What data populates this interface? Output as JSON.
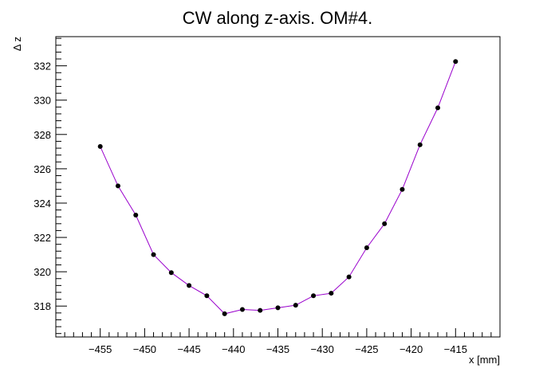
{
  "chart_data": {
    "type": "line",
    "title": "CW along z-axis. OM#4.",
    "xlabel": "x [mm]",
    "ylabel": "Δ z",
    "xlim": [
      -460,
      -410
    ],
    "ylim": [
      316.2,
      333.7
    ],
    "x_ticks": [
      -455,
      -450,
      -445,
      -440,
      -435,
      -430,
      -425,
      -420,
      -415
    ],
    "y_ticks": [
      318,
      320,
      322,
      324,
      326,
      328,
      330,
      332
    ],
    "grid": false,
    "colors": {
      "line": "#9900cc",
      "marker": "#000000",
      "frame": "#000000"
    },
    "series": [
      {
        "x": [
          -455,
          -453,
          -451,
          -449,
          -447,
          -445,
          -443,
          -441,
          -439,
          -437,
          -435,
          -433,
          -431,
          -429,
          -427,
          -425,
          -423,
          -421,
          -419,
          -417,
          -415
        ],
        "values": [
          327.3,
          325.0,
          323.3,
          321.0,
          319.95,
          319.2,
          318.6,
          317.55,
          317.8,
          317.75,
          317.9,
          318.05,
          318.6,
          318.75,
          319.7,
          321.4,
          322.8,
          324.8,
          327.4,
          329.55,
          332.25
        ]
      }
    ]
  }
}
